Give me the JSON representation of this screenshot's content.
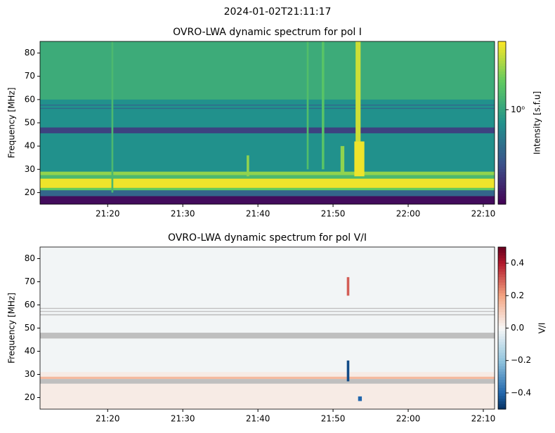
{
  "title": "2024-01-02T21:11:17",
  "chart_data": [
    {
      "type": "heatmap",
      "title": "OVRO-LWA dynamic spectrum for pol I",
      "ylabel": "Frequency [MHz]",
      "colorbar_label": "Intensity [s.f.u]",
      "cmap": "viridis",
      "log_color": true,
      "clim": [
        0.2,
        3.2
      ],
      "cticks": [
        {
          "value": 1,
          "label": "10⁰"
        }
      ],
      "xlim": [
        "21:11:00",
        "22:11:30"
      ],
      "xticks": [
        "21:20",
        "21:30",
        "21:40",
        "21:50",
        "22:00",
        "22:10"
      ],
      "ylim": [
        15,
        85
      ],
      "yticks": [
        20,
        30,
        40,
        50,
        60,
        70,
        80
      ],
      "bands": [
        {
          "f0": 15,
          "f1": 85,
          "value": 0.8
        },
        {
          "f0": 60,
          "f1": 85,
          "value": 1.1
        },
        {
          "f0": 15,
          "f1": 18.5,
          "value": 0.22
        },
        {
          "f0": 18.5,
          "f1": 21,
          "value": 0.5
        },
        {
          "f0": 21,
          "f1": 22,
          "value": 1.6
        },
        {
          "f0": 22,
          "f1": 26,
          "value": 3
        },
        {
          "f0": 26,
          "f1": 27.5,
          "value": 1.3
        },
        {
          "f0": 27.5,
          "f1": 29,
          "value": 2
        },
        {
          "f0": 45.5,
          "f1": 48,
          "value": 0.35
        },
        {
          "f0": 56,
          "f1": 56.4,
          "value": 0.5
        },
        {
          "f0": 57.4,
          "f1": 57.8,
          "value": 0.5
        }
      ],
      "bursts": [
        {
          "t0": "21:52:50",
          "t1": "21:54:10",
          "f0": 27,
          "f1": 42,
          "value": 3
        },
        {
          "t0": "21:53:00",
          "t1": "21:53:40",
          "f0": 42,
          "f1": 85,
          "value": 2.6
        },
        {
          "t0": "21:51:00",
          "t1": "21:51:30",
          "f0": 28,
          "f1": 40,
          "value": 2
        },
        {
          "t0": "21:48:30",
          "t1": "21:48:50",
          "f0": 30,
          "f1": 85,
          "value": 1.5
        },
        {
          "t0": "21:46:30",
          "t1": "21:46:45",
          "f0": 30,
          "f1": 85,
          "value": 1.4
        },
        {
          "t0": "21:38:30",
          "t1": "21:38:50",
          "f0": 27,
          "f1": 36,
          "value": 2
        },
        {
          "t0": "21:20:30",
          "t1": "21:20:45",
          "f0": 20,
          "f1": 85,
          "value": 1.3
        }
      ]
    },
    {
      "type": "heatmap",
      "title": "OVRO-LWA dynamic spectrum for pol V/I",
      "ylabel": "Frequency [MHz]",
      "colorbar_label": "V/I",
      "cmap": "RdBu_r",
      "log_color": false,
      "nan_color": "#bfbfbf",
      "clim": [
        -0.5,
        0.5
      ],
      "cticks": [
        {
          "value": -0.4,
          "label": "−0.4"
        },
        {
          "value": -0.2,
          "label": "−0.2"
        },
        {
          "value": 0,
          "label": "0.0"
        },
        0.2,
        0.4
      ],
      "xlim": [
        "21:11:00",
        "22:11:30"
      ],
      "xticks": [
        "21:20",
        "21:30",
        "21:40",
        "21:50",
        "22:00",
        "22:10"
      ],
      "ylim": [
        15,
        85
      ],
      "yticks": [
        20,
        30,
        40,
        50,
        60,
        70,
        80
      ],
      "bands": [
        {
          "f0": 15,
          "f1": 85,
          "value": -0.01
        },
        {
          "f0": 15,
          "f1": 31,
          "value": 0.03
        },
        {
          "f0": 28,
          "f1": 29,
          "value": 0.15
        },
        {
          "f0": 26,
          "f1": 28,
          "value": null
        },
        {
          "f0": 45.5,
          "f1": 48,
          "value": null
        },
        {
          "f0": 55.5,
          "f1": 56,
          "value": null
        },
        {
          "f0": 57,
          "f1": 57.4,
          "value": null
        },
        {
          "f0": 58.3,
          "f1": 58.7,
          "value": null
        }
      ],
      "bursts": [
        {
          "t0": "21:51:50",
          "t1": "21:52:10",
          "f0": 27,
          "f1": 36,
          "value": -0.45
        },
        {
          "t0": "21:51:50",
          "t1": "21:52:10",
          "f0": 64,
          "f1": 72,
          "value": 0.3
        },
        {
          "t0": "21:53:20",
          "t1": "21:53:50",
          "f0": 18.5,
          "f1": 20.5,
          "value": -0.4
        }
      ]
    }
  ]
}
